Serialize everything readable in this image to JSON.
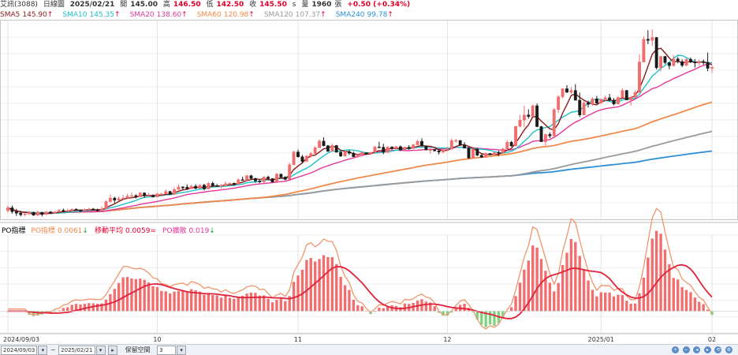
{
  "header": {
    "stock": "艾訊(3088)",
    "period": "日線圖",
    "date": "2025/02/21",
    "open_label": "開",
    "open": "145.00",
    "high_label": "高",
    "high": "146.50",
    "low_label": "低",
    "low": "142.50",
    "close_label": "收",
    "close": "145.50",
    "s_label": "s",
    "volume_label": "量",
    "volume": "1960",
    "volume_unit": "張",
    "change": "+0.50 (+0.34%)"
  },
  "ma_legend": [
    {
      "label": "SMA5",
      "value": "145.90",
      "arrow": "↑",
      "color": "#8b1a1a"
    },
    {
      "label": "SMA10",
      "value": "145.35",
      "arrow": "↑",
      "color": "#1fc2c9"
    },
    {
      "label": "SMA20",
      "value": "138.60",
      "arrow": "↑",
      "color": "#e3379a"
    },
    {
      "label": "SMA60",
      "value": "120.98",
      "arrow": "↑",
      "color": "#f08a4b"
    },
    {
      "label": "SMA120",
      "value": "107.37",
      "arrow": "↑",
      "color": "#9a9a9a"
    },
    {
      "label": "SMA240",
      "value": "99.78",
      "arrow": "↑",
      "color": "#2d8fd5"
    }
  ],
  "po_legend": {
    "title": "PO指標",
    "items": [
      {
        "label": "PO指標",
        "value": "0.0061",
        "arrow": "↓",
        "color": "#f08a4b"
      },
      {
        "label": "移動平均",
        "value": "0.0059",
        "arrow": "=",
        "color": "#e0002a"
      },
      {
        "label": "PO擴散",
        "value": "0.019",
        "arrow": "↓",
        "color": "#e3379a"
      }
    ]
  },
  "x_labels": [
    "2024/09/03",
    "10",
    "11",
    "12",
    "2025/01",
    "02"
  ],
  "footer": {
    "start": "2024/09/03",
    "end": "2025/02/21",
    "label": "保留空間",
    "value": "3"
  },
  "colors": {
    "up": "#f26d6d",
    "down": "#1a1a1a",
    "neg": "#7ed37e",
    "grid": "#eeeeee"
  },
  "chart_data": {
    "type": "candlestick",
    "note_source": "daily OHLC estimated from chart",
    "ylim": [
      66,
      170
    ],
    "ohlc": [
      [
        70.5,
        73,
        69.5,
        72
      ],
      [
        72,
        73.2,
        69,
        70
      ],
      [
        70,
        71.5,
        67.8,
        69.2
      ],
      [
        69.2,
        70.4,
        67.5,
        68.4
      ],
      [
        68.4,
        69.4,
        67.6,
        68.8
      ],
      [
        68.8,
        70.4,
        68.2,
        69.6
      ],
      [
        69.6,
        70,
        67.8,
        68.2
      ],
      [
        68.2,
        70.5,
        67.6,
        69.6
      ],
      [
        69.6,
        69.9,
        67.5,
        68.5
      ],
      [
        68.5,
        70.4,
        68.3,
        69.8
      ],
      [
        69.8,
        70.4,
        69,
        69.2
      ],
      [
        69.2,
        70.3,
        69,
        69.9
      ],
      [
        69.9,
        71.4,
        69.7,
        70.7
      ],
      [
        70.7,
        71.6,
        69.6,
        70.4
      ],
      [
        70.4,
        71.5,
        70.1,
        70.6
      ],
      [
        70.6,
        71.6,
        69.9,
        71.3
      ],
      [
        71.3,
        71.7,
        70.6,
        70.8
      ],
      [
        70.8,
        71.2,
        69.6,
        70.6
      ],
      [
        70.6,
        71.7,
        70.5,
        71.1
      ],
      [
        71.1,
        72,
        70.6,
        71.4
      ],
      [
        71.4,
        71.9,
        70.8,
        70.9
      ],
      [
        70.9,
        71.6,
        70.1,
        70.7
      ],
      [
        70.7,
        72.7,
        70.7,
        71.4
      ],
      [
        71.4,
        76,
        71.4,
        75.3
      ],
      [
        75.3,
        79,
        74.8,
        77.1
      ],
      [
        77.1,
        77.8,
        74.6,
        76
      ],
      [
        76,
        77.8,
        75.8,
        76.8
      ],
      [
        76.8,
        78.8,
        76.5,
        77.1
      ],
      [
        77.1,
        79.4,
        77,
        78.1
      ],
      [
        78.1,
        80,
        77.9,
        78.4
      ],
      [
        78.4,
        79.1,
        76.9,
        77.8
      ],
      [
        77.8,
        80.4,
        77.6,
        79.8
      ],
      [
        79.8,
        80.1,
        77.3,
        78.3
      ],
      [
        78.3,
        79.9,
        77.7,
        78.4
      ],
      [
        78.4,
        79.1,
        77.4,
        77.7
      ],
      [
        77.7,
        79.8,
        77.5,
        79.3
      ],
      [
        79.3,
        79.8,
        78.3,
        79.3
      ],
      [
        79.3,
        81.6,
        79.3,
        80.6
      ],
      [
        80.6,
        80.9,
        78.8,
        79
      ],
      [
        79,
        82.8,
        78.9,
        81.6
      ],
      [
        81.6,
        84.3,
        81.6,
        82.9
      ],
      [
        82.9,
        83.3,
        81.2,
        82.8
      ],
      [
        82.8,
        84.3,
        82,
        82
      ],
      [
        82,
        84,
        81.8,
        83.3
      ],
      [
        83.3,
        84.3,
        81.8,
        82.2
      ],
      [
        82.2,
        84.1,
        82,
        83.9
      ],
      [
        83.9,
        84.6,
        81.1,
        81.9
      ],
      [
        81.9,
        85.5,
        81.7,
        84.8
      ],
      [
        84.8,
        85.7,
        83,
        83.6
      ],
      [
        83.6,
        84.5,
        82.9,
        83.2
      ],
      [
        83.2,
        84.5,
        82.1,
        83.7
      ],
      [
        83.7,
        85.8,
        83.2,
        84.6
      ],
      [
        84.6,
        85.3,
        84.2,
        84.9
      ],
      [
        84.9,
        85.2,
        83.7,
        84.4
      ],
      [
        84.4,
        87.5,
        84.3,
        86.7
      ],
      [
        86.7,
        88.3,
        86.2,
        86.6
      ],
      [
        86.6,
        89.2,
        86.1,
        88.8
      ],
      [
        88.8,
        89.3,
        86.7,
        87.4
      ],
      [
        87.4,
        87.7,
        85.1,
        86.1
      ],
      [
        86.1,
        86.6,
        84.9,
        85.6
      ],
      [
        85.6,
        88.6,
        85,
        88.1
      ],
      [
        88.1,
        88.8,
        86.8,
        87.3
      ],
      [
        87.3,
        87.5,
        85.4,
        85.5
      ],
      [
        85.5,
        90.3,
        85.3,
        89.6
      ],
      [
        89.6,
        89.9,
        87.7,
        88.1
      ],
      [
        88.1,
        88.5,
        86.4,
        86.9
      ],
      [
        86.9,
        95.6,
        86.9,
        94.5
      ],
      [
        94.5,
        101.9,
        94.5,
        101.2
      ],
      [
        101.2,
        102.5,
        98.3,
        98.7
      ],
      [
        98.7,
        99.7,
        95.2,
        96.3
      ],
      [
        96.3,
        99.6,
        96.3,
        99.1
      ],
      [
        99.1,
        101.2,
        98.1,
        100.4
      ],
      [
        100.4,
        104.3,
        100.3,
        103.4
      ],
      [
        103.4,
        107.8,
        103.4,
        106.9
      ],
      [
        106.9,
        108.9,
        104.2,
        104.5
      ],
      [
        104.5,
        104.9,
        101.2,
        101.6
      ],
      [
        101.6,
        105.6,
        101.4,
        104.6
      ],
      [
        104.6,
        104.9,
        100.9,
        101.1
      ],
      [
        101.1,
        101.7,
        98.6,
        99.1
      ],
      [
        99.1,
        101.9,
        98.9,
        101.3
      ],
      [
        101.3,
        102.4,
        99.7,
        100.6
      ],
      [
        100.6,
        101.4,
        98.6,
        98.7
      ],
      [
        98.7,
        100.3,
        98.2,
        99.9
      ],
      [
        99.9,
        101.6,
        99.4,
        100.9
      ],
      [
        100.9,
        101,
        99.7,
        100.3
      ],
      [
        100.3,
        101.3,
        99.8,
        101
      ],
      [
        101,
        104.4,
        100.8,
        103.8
      ],
      [
        103.8,
        106.6,
        103.4,
        103.7
      ],
      [
        103.7,
        105.5,
        100.1,
        101.1
      ],
      [
        101.1,
        104.2,
        100.6,
        103.8
      ],
      [
        103.8,
        104.2,
        102.3,
        103.2
      ],
      [
        103.2,
        104.4,
        103.1,
        104
      ],
      [
        104,
        104.6,
        101.7,
        102.3
      ],
      [
        102.3,
        103.9,
        101.9,
        103.7
      ],
      [
        103.7,
        104.8,
        102.4,
        103
      ],
      [
        103,
        105.4,
        102.9,
        105
      ],
      [
        105,
        107.6,
        104.8,
        106.8
      ],
      [
        106.8,
        108.4,
        103.9,
        104.4
      ],
      [
        104.4,
        104.5,
        102.1,
        102.3
      ],
      [
        102.3,
        103.5,
        100.4,
        102.4
      ],
      [
        102.4,
        102.8,
        101.5,
        101.8
      ],
      [
        101.8,
        102.7,
        99.9,
        101.2
      ],
      [
        101.2,
        103,
        100.5,
        102.3
      ],
      [
        102.3,
        103.8,
        101.8,
        102.7
      ],
      [
        102.7,
        108.3,
        102.7,
        107.2
      ],
      [
        107.2,
        108.2,
        106.2,
        107.2
      ],
      [
        107.2,
        107.5,
        104.4,
        104.9
      ],
      [
        104.9,
        106.3,
        103.1,
        103.2
      ],
      [
        103.2,
        103.7,
        97.7,
        98.1
      ],
      [
        98.1,
        103.4,
        97.7,
        102.7
      ],
      [
        102.7,
        103.3,
        99.1,
        99.5
      ],
      [
        99.5,
        100,
        98.2,
        98.4
      ],
      [
        98.4,
        101.1,
        98.3,
        100.4
      ],
      [
        100.4,
        100.7,
        99.6,
        99.7
      ],
      [
        99.7,
        101.1,
        99.5,
        101
      ],
      [
        101,
        101.9,
        99.1,
        100.9
      ],
      [
        100.9,
        103.3,
        100.4,
        102.9
      ],
      [
        102.9,
        107.3,
        102.7,
        106.3
      ],
      [
        106.3,
        107,
        104,
        104.4
      ],
      [
        104.4,
        114.9,
        104.2,
        114.6
      ],
      [
        114.6,
        120.6,
        114.3,
        117.9
      ],
      [
        117.9,
        125.4,
        114.3,
        120.6
      ],
      [
        120.6,
        123.5,
        118.7,
        119.8
      ],
      [
        119.8,
        126,
        119.8,
        125.4
      ],
      [
        125.4,
        126.6,
        114.2,
        114.5
      ],
      [
        114.5,
        114.9,
        106.6,
        106.6
      ],
      [
        106.6,
        110.8,
        104.6,
        110.4
      ],
      [
        110.4,
        111.5,
        108.5,
        109.7
      ],
      [
        109.7,
        124.2,
        108.5,
        123.4
      ],
      [
        123.4,
        130.9,
        121.7,
        130.1
      ],
      [
        130.1,
        134.6,
        129.3,
        134.3
      ],
      [
        134.3,
        136.2,
        132.1,
        132.5
      ],
      [
        132.5,
        135.2,
        131.6,
        133.4
      ],
      [
        133.4,
        136.7,
        128.2,
        128.3
      ],
      [
        128.3,
        132.3,
        119.5,
        120.6
      ],
      [
        120.6,
        128.1,
        120.5,
        126.9
      ],
      [
        126.9,
        128.1,
        124.5,
        126.2
      ],
      [
        126.2,
        129.9,
        125.5,
        129
      ],
      [
        129,
        130.5,
        126.3,
        126.8
      ],
      [
        126.8,
        129.2,
        126.4,
        128.8
      ],
      [
        128.8,
        130.7,
        127.9,
        129.6
      ],
      [
        129.6,
        131.6,
        127.7,
        128.3
      ],
      [
        128.3,
        129.4,
        125.7,
        126.3
      ],
      [
        126.3,
        130.5,
        126.3,
        129.7
      ],
      [
        129.7,
        134.6,
        129.6,
        133.4
      ],
      [
        133.4,
        133.7,
        128.3,
        128.4
      ],
      [
        128.4,
        130.6,
        125.5,
        129.8
      ],
      [
        129.8,
        133.5,
        129.7,
        132.3
      ],
      [
        132.3,
        152.3,
        132.3,
        148.3
      ],
      [
        148.3,
        161.8,
        148.1,
        160.2
      ],
      [
        160.2,
        164.9,
        157.6,
        159.6
      ],
      [
        159.6,
        165.3,
        156.6,
        161.1
      ],
      [
        161.1,
        161.4,
        144.4,
        145.3
      ],
      [
        145.3,
        151.5,
        143.4,
        151.2
      ],
      [
        151.2,
        151.5,
        147.2,
        148
      ],
      [
        148,
        148.1,
        144.5,
        146.4
      ],
      [
        146.4,
        151.9,
        145.9,
        149.9
      ],
      [
        149.9,
        150.9,
        147.6,
        148.5
      ],
      [
        148.5,
        149.7,
        145.6,
        146.5
      ],
      [
        146.5,
        150.3,
        146.3,
        149.7
      ],
      [
        149.7,
        150.7,
        147.7,
        148.3
      ],
      [
        148.3,
        149.8,
        145.4,
        147.8
      ],
      [
        147.8,
        149.6,
        146.2,
        148.4
      ],
      [
        148.4,
        149.6,
        146.9,
        148.2
      ],
      [
        148.2,
        153.2,
        143.5,
        145
      ],
      [
        145,
        146.5,
        142.5,
        145.5
      ]
    ]
  }
}
